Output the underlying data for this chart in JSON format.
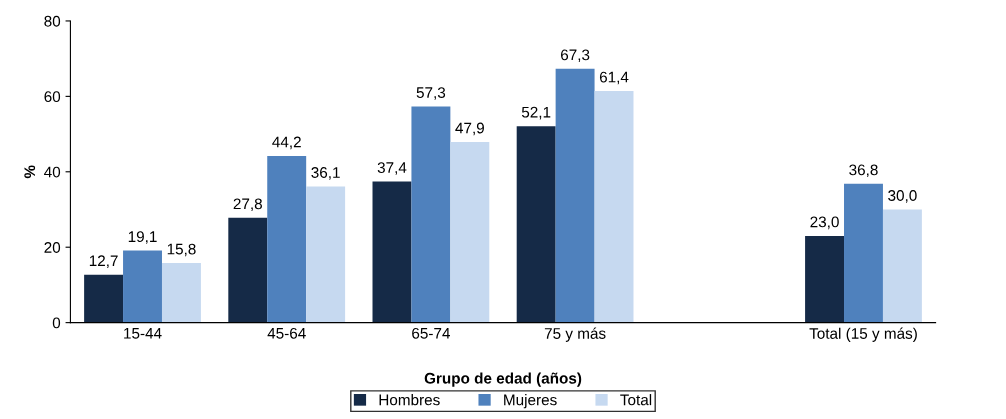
{
  "chart_data": {
    "type": "bar",
    "xlabel": "Grupo de edad (años)",
    "ylabel": "%",
    "categories": [
      "15-44",
      "45-64",
      "65-74",
      "75 y más",
      null,
      "Total (15 y más)"
    ],
    "series": [
      {
        "name": "Hombres",
        "color": "#152a47",
        "values": [
          12.7,
          27.8,
          37.4,
          52.1,
          null,
          23.0
        ],
        "value_labels": [
          "12,7",
          "27,8",
          "37,4",
          "52,1",
          null,
          "23,0"
        ]
      },
      {
        "name": "Mujeres",
        "color": "#4f81bd",
        "values": [
          19.1,
          44.2,
          57.3,
          67.3,
          null,
          36.8
        ],
        "value_labels": [
          "19,1",
          "44,2",
          "57,3",
          "67,3",
          null,
          "36,8"
        ]
      },
      {
        "name": "Total",
        "color": "#c6d9f0",
        "values": [
          15.8,
          36.1,
          47.9,
          61.4,
          null,
          30.0
        ],
        "value_labels": [
          "15,8",
          "36,1",
          "47,9",
          "61,4",
          null,
          "30,0"
        ]
      }
    ],
    "ylim": [
      0,
      80
    ],
    "yticks": [
      0,
      20,
      40,
      60,
      80
    ],
    "grid": false,
    "legend": "bottom"
  }
}
